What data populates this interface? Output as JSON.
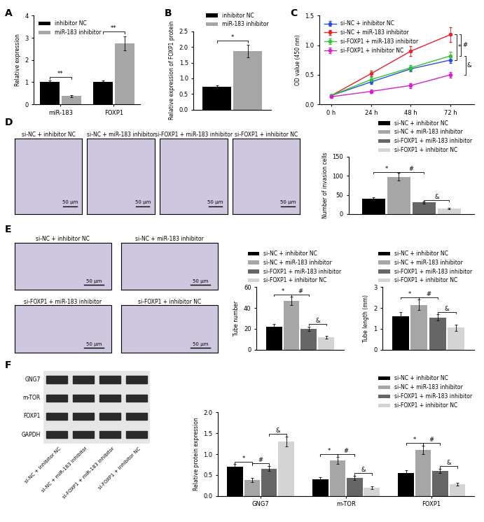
{
  "chart_data": [
    {
      "type": "bar",
      "panel": "A",
      "categories": [
        "miR-183",
        "FOXP1"
      ],
      "series": [
        {
          "name": "inhibitor NC",
          "color": "#000000",
          "values": [
            1.0,
            1.0
          ],
          "errors": [
            0.08,
            0.07
          ]
        },
        {
          "name": "miR-183 inhibitor",
          "color": "#a6a6a6",
          "values": [
            0.38,
            2.75
          ],
          "errors": [
            0.05,
            0.32
          ]
        }
      ],
      "y_label": "Relative expression",
      "ylim": [
        0,
        4
      ],
      "yticks": [
        0,
        1,
        2,
        3,
        4
      ],
      "legend": "upper left",
      "annotations": [
        {
          "text": "**",
          "from": [
            0,
            0
          ],
          "to": [
            0,
            1
          ],
          "y": 1.25
        },
        {
          "text": "**",
          "from": [
            1,
            0
          ],
          "to": [
            1,
            1
          ],
          "y": 3.3
        }
      ]
    },
    {
      "type": "bar",
      "panel": "B",
      "categories": [
        null
      ],
      "tick_labels": "y",
      "series": [
        {
          "name": "inhibitor NC",
          "color": "#000000",
          "values": [
            0.73
          ],
          "errors": [
            0.05
          ]
        },
        {
          "name": "miR-183 inhibitor",
          "color": "#a6a6a6",
          "values": [
            1.87
          ],
          "errors": [
            0.2
          ]
        }
      ],
      "y_label": "Relative expression of FOXP1 protein",
      "ylim": [
        0,
        2.5
      ],
      "yticks": [
        {
          "value": 0,
          "label": "0.0"
        },
        0.5,
        {
          "value": 1,
          "label": "1.0"
        },
        1.5,
        {
          "value": 2,
          "label": "2.0"
        },
        2.5
      ],
      "legend": "upper right",
      "annotations": [
        {
          "text": "*",
          "from": [
            0,
            0
          ],
          "to": [
            0,
            1
          ],
          "y": 2.2
        }
      ]
    },
    {
      "type": "line",
      "panel": "C",
      "categories": [
        "0 h",
        "24 h",
        "48 h",
        "72 h"
      ],
      "marker": "circle",
      "series": [
        {
          "name": "si-NC + inhibitor NC",
          "color": "#2b4fd8",
          "values": [
            0.15,
            0.38,
            0.6,
            0.75
          ],
          "errors": [
            0.02,
            0.03,
            0.04,
            0.05
          ]
        },
        {
          "name": "si-NC + miR-183 inhibitor",
          "color": "#e8202a",
          "values": [
            0.15,
            0.52,
            0.9,
            1.18
          ],
          "errors": [
            0.02,
            0.05,
            0.08,
            0.12
          ]
        },
        {
          "name": "si-FOXP1 + miR-183 inhibitor",
          "color": "#2ec437",
          "values": [
            0.15,
            0.42,
            0.62,
            0.82
          ],
          "errors": [
            0.02,
            0.04,
            0.05,
            0.07
          ]
        },
        {
          "name": "si-FOXP1 + inhibitor NC",
          "color": "#d21fd2",
          "values": [
            0.13,
            0.22,
            0.32,
            0.5
          ],
          "errors": [
            0.02,
            0.03,
            0.04,
            0.05
          ]
        }
      ],
      "y_label": "OD value (450 nm)",
      "ylim": [
        0,
        1.5
      ],
      "yticks": [
        {
          "value": 0,
          "label": "0.0"
        },
        0.5,
        {
          "value": 1,
          "label": "1.0"
        },
        1.5
      ],
      "legend": "upper left",
      "annotations": [
        {
          "text": "*",
          "series": [
            0,
            1
          ]
        },
        {
          "text": "#",
          "series": [
            1,
            2
          ]
        },
        {
          "text": "&",
          "series": [
            2,
            3
          ]
        }
      ]
    },
    {
      "type": "bar",
      "categories": [
        null
      ],
      "tick_labels": "y",
      "series": [
        {
          "name": "si-NC + inhibitor NC",
          "color": "#000000",
          "values": [
            40
          ],
          "errors": [
            3
          ]
        },
        {
          "name": "si-NC + miR-183 inhibitor",
          "color": "#a6a6a6",
          "values": [
            97
          ],
          "errors": [
            10
          ]
        },
        {
          "name": "si-FOXP1 + miR-183 inhibitor",
          "color": "#666666",
          "values": [
            30
          ],
          "errors": [
            3
          ]
        },
        {
          "name": "si-FOXP1 + inhibitor NC",
          "color": "#d4d4d4",
          "values": [
            14
          ],
          "errors": [
            2
          ]
        }
      ],
      "y_label": "Number of invasion cells",
      "ylim": [
        0,
        150
      ],
      "yticks": [
        0,
        50,
        100,
        150
      ],
      "legend": "upper right",
      "annotations": [
        {
          "text": "*",
          "from": [
            0,
            0
          ],
          "to": [
            0,
            1
          ],
          "y": 110
        },
        {
          "text": "#",
          "from": [
            0,
            1
          ],
          "to": [
            0,
            2
          ],
          "y": 110
        },
        {
          "text": "&",
          "from": [
            0,
            2
          ],
          "to": [
            0,
            3
          ],
          "y": 37
        }
      ]
    },
    {
      "type": "bar",
      "categories": [
        null
      ],
      "tick_labels": "y",
      "series": [
        {
          "name": "si-NC + inhibitor NC",
          "color": "#000000",
          "values": [
            22
          ],
          "errors": [
            3
          ]
        },
        {
          "name": "si-NC + miR-183 inhibitor",
          "color": "#a6a6a6",
          "values": [
            47
          ],
          "errors": [
            4
          ]
        },
        {
          "name": "si-FOXP1 + miR-183 inhibitor",
          "color": "#666666",
          "values": [
            20
          ],
          "errors": [
            2
          ]
        },
        {
          "name": "si-FOXP1 + inhibitor NC",
          "color": "#d4d4d4",
          "values": [
            12
          ],
          "errors": [
            1.5
          ]
        }
      ],
      "y_label": "Tube number",
      "ylim": [
        0,
        60
      ],
      "yticks": [
        0,
        20,
        40,
        60
      ],
      "legend": "upper right",
      "annotations": [
        {
          "text": "*",
          "from": [
            0,
            0
          ],
          "to": [
            0,
            1
          ],
          "y": 53
        },
        {
          "text": "#",
          "from": [
            0,
            1
          ],
          "to": [
            0,
            2
          ],
          "y": 53
        },
        {
          "text": "&",
          "from": [
            0,
            2
          ],
          "to": [
            0,
            3
          ],
          "y": 25
        }
      ]
    },
    {
      "type": "bar",
      "categories": [
        null
      ],
      "tick_labels": "y",
      "series": [
        {
          "name": "si-NC + inhibitor NC",
          "color": "#000000",
          "values": [
            1.6
          ],
          "errors": [
            0.2
          ]
        },
        {
          "name": "si-NC + miR-183 inhibitor",
          "color": "#a6a6a6",
          "values": [
            2.15
          ],
          "errors": [
            0.25
          ]
        },
        {
          "name": "si-FOXP1 + miR-183 inhibitor",
          "color": "#666666",
          "values": [
            1.55
          ],
          "errors": [
            0.15
          ]
        },
        {
          "name": "si-FOXP1 + inhibitor NC",
          "color": "#d4d4d4",
          "values": [
            1.05
          ],
          "errors": [
            0.15
          ]
        }
      ],
      "y_label": "Tube length (mm)",
      "ylim": [
        0,
        3
      ],
      "yticks": [
        0,
        1,
        2,
        3
      ],
      "legend": "upper right",
      "annotations": [
        {
          "text": "*",
          "from": [
            0,
            0
          ],
          "to": [
            0,
            1
          ],
          "y": 2.5
        },
        {
          "text": "#",
          "from": [
            0,
            1
          ],
          "to": [
            0,
            2
          ],
          "y": 2.5
        },
        {
          "text": "&",
          "from": [
            0,
            2
          ],
          "to": [
            0,
            3
          ],
          "y": 1.8
        }
      ]
    },
    {
      "type": "bar",
      "categories": [
        "GNG7",
        "m-TOR",
        "FOXP1"
      ],
      "series": [
        {
          "name": "si-NC + inhibitor NC",
          "color": "#000000",
          "values": [
            0.7,
            0.4,
            0.55
          ],
          "errors": [
            0.06,
            0.04,
            0.06
          ]
        },
        {
          "name": "si-NC + miR-183 inhibitor",
          "color": "#a6a6a6",
          "values": [
            0.38,
            0.85,
            1.1
          ],
          "errors": [
            0.05,
            0.08,
            0.1
          ]
        },
        {
          "name": "si-FOXP1 + miR-183 inhibitor",
          "color": "#666666",
          "values": [
            0.65,
            0.43,
            0.6
          ],
          "errors": [
            0.06,
            0.05,
            0.05
          ]
        },
        {
          "name": "si-FOXP1 + inhibitor NC",
          "color": "#d4d4d4",
          "values": [
            1.3,
            0.2,
            0.28
          ],
          "errors": [
            0.12,
            0.03,
            0.04
          ]
        }
      ],
      "y_label": "Relative protein expression",
      "ylim": [
        0,
        2.0
      ],
      "yticks": [
        {
          "value": 0,
          "label": "0.0"
        },
        0.5,
        {
          "value": 1,
          "label": "1.0"
        },
        1.5,
        {
          "value": 2,
          "label": "2.0"
        }
      ],
      "legend": "upper right",
      "annotations": [
        {
          "text": "*",
          "from": [
            0,
            0
          ],
          "to": [
            0,
            1
          ],
          "y": 0.82
        },
        {
          "text": "#",
          "from": [
            0,
            1
          ],
          "to": [
            0,
            2
          ],
          "y": 0.78
        },
        {
          "text": "&",
          "from": [
            0,
            2
          ],
          "to": [
            0,
            3
          ],
          "y": 1.48
        },
        {
          "text": "*",
          "from": [
            1,
            0
          ],
          "to": [
            1,
            1
          ],
          "y": 1.0
        },
        {
          "text": "#",
          "from": [
            1,
            1
          ],
          "to": [
            1,
            2
          ],
          "y": 1.0
        },
        {
          "text": "&",
          "from": [
            1,
            2
          ],
          "to": [
            1,
            3
          ],
          "y": 0.55
        },
        {
          "text": "*",
          "from": [
            2,
            0
          ],
          "to": [
            2,
            1
          ],
          "y": 1.27
        },
        {
          "text": "#",
          "from": [
            2,
            1
          ],
          "to": [
            2,
            2
          ],
          "y": 1.27
        },
        {
          "text": "&",
          "from": [
            2,
            2
          ],
          "to": [
            2,
            3
          ],
          "y": 0.72
        }
      ]
    }
  ],
  "image_panels": [
    {
      "panel": "D",
      "images": [
        {
          "title": "si-NC + inhibitor NC",
          "scale_bar": "50 μm"
        },
        {
          "title": "si-NC + miR-183 inhibitor",
          "scale_bar": "50 μm"
        },
        {
          "title": "si-FOXP1 + miR-183 inhibitor",
          "scale_bar": "50 μm"
        },
        {
          "title": "si-FOXP1 + inhibitor NC",
          "scale_bar": "50 μm"
        }
      ]
    },
    {
      "panel": "E",
      "images": [
        {
          "title": "si-NC + inhibitor NC",
          "scale_bar": "50 μm"
        },
        {
          "title": "si-NC + miR-183 inhibitor",
          "scale_bar": "50 μm"
        },
        {
          "title": "si-FOXP1 + miR-183 inhibitor",
          "scale_bar": "50 μm"
        },
        {
          "title": "si-FOXP1 + inhibitor NC",
          "scale_bar": "50 μm"
        }
      ]
    },
    {
      "panel": "F",
      "blot_rows": [
        "GNG7",
        "m-TOR",
        "FOXP1",
        "GAPDH"
      ],
      "lane_labels": [
        "si-NC + inhibitor NC",
        "si-NC + miR-183 inhibitor",
        "si-FOXP1 + miR-183 inhibitor",
        "si-FOXP1 + inhibitor NC"
      ]
    }
  ]
}
